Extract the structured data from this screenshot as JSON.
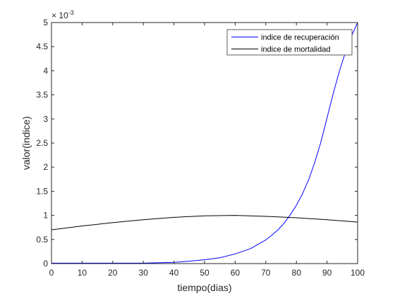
{
  "chart_data": {
    "type": "line",
    "title": "",
    "xlabel": "tiempo(dias)",
    "ylabel": "valor(indice)",
    "xlim": [
      0,
      100
    ],
    "ylim": [
      0,
      0.005
    ],
    "x_ticks": [
      0,
      10,
      20,
      30,
      40,
      50,
      60,
      70,
      80,
      90,
      100
    ],
    "x_tick_labels": [
      "0",
      "10",
      "20",
      "30",
      "40",
      "50",
      "60",
      "70",
      "80",
      "90",
      "100"
    ],
    "y_ticks": [
      0,
      0.0005,
      0.001,
      0.0015,
      0.002,
      0.0025,
      0.003,
      0.0035,
      0.004,
      0.0045,
      0.005
    ],
    "y_tick_labels": [
      "0",
      "0.5",
      "1",
      "1.5",
      "2",
      "2.5",
      "3",
      "3.5",
      "4",
      "4.5",
      "5"
    ],
    "y_exponent": {
      "prefix": "× 10",
      "power": "-3"
    },
    "grid": false,
    "legend_position": "top-right",
    "series": [
      {
        "name": "indice de recuperación",
        "color": "#0000ff",
        "x": [
          0,
          10,
          20,
          30,
          40,
          45,
          50,
          55,
          60,
          65,
          70,
          72,
          74,
          76,
          78,
          80,
          82,
          84,
          86,
          88,
          90,
          92,
          94,
          96,
          98,
          100
        ],
        "y": [
          1e-05,
          1e-05,
          1e-05,
          1e-05,
          2.5e-05,
          5e-05,
          8e-05,
          0.00012,
          0.0002,
          0.00031,
          0.00049,
          0.00059,
          0.0007,
          0.00084,
          0.00101,
          0.00121,
          0.00145,
          0.00174,
          0.0021,
          0.00252,
          0.00302,
          0.00352,
          0.00398,
          0.00438,
          0.00472,
          0.005
        ]
      },
      {
        "name": "indice de mortalidad",
        "color": "#000000",
        "x": [
          0,
          10,
          20,
          30,
          40,
          50,
          60,
          70,
          80,
          90,
          100
        ],
        "y": [
          0.0007,
          0.00078,
          0.00085,
          0.00091,
          0.00096,
          0.00099,
          0.001,
          0.00098,
          0.00095,
          0.00091,
          0.00086
        ]
      }
    ]
  }
}
